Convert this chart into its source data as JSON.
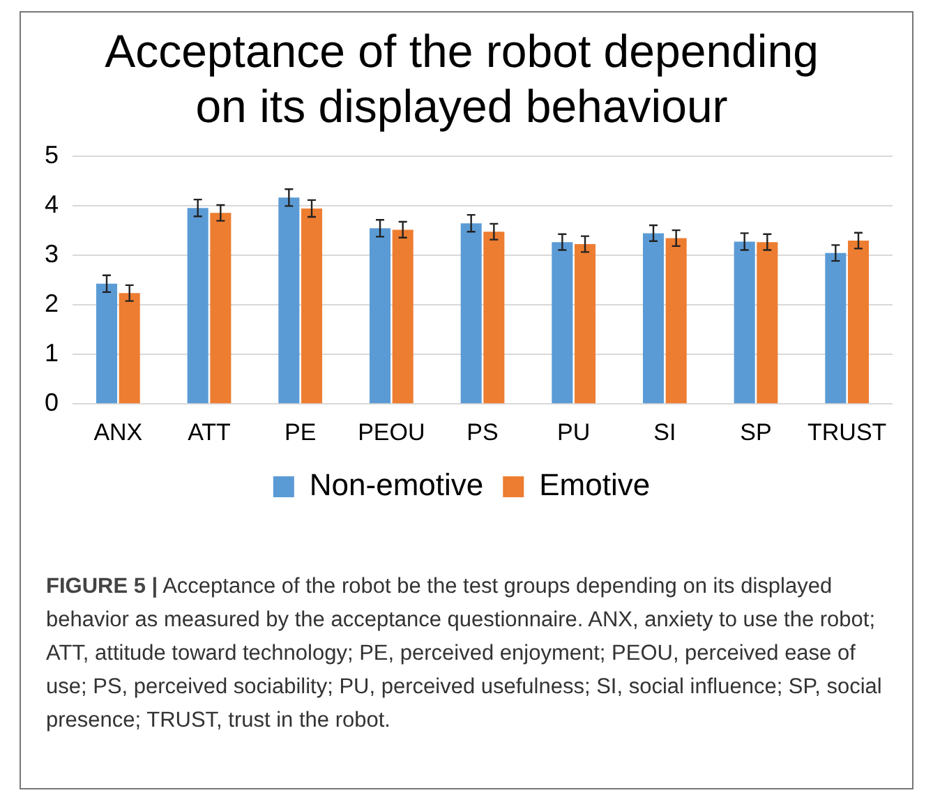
{
  "chart_data": {
    "type": "bar",
    "title": [
      "Acceptance of the robot depending",
      "on its displayed behaviour"
    ],
    "categories": [
      "ANX",
      "ATT",
      "PE",
      "PEOU",
      "PS",
      "PU",
      "SI",
      "SP",
      "TRUST"
    ],
    "series": [
      {
        "name": "Non-emotive",
        "color": "#5b9bd5",
        "values": [
          2.43,
          3.96,
          4.17,
          3.55,
          3.65,
          3.27,
          3.45,
          3.28,
          3.05
        ],
        "errors": [
          0.17,
          0.17,
          0.17,
          0.17,
          0.17,
          0.16,
          0.16,
          0.17,
          0.16
        ]
      },
      {
        "name": "Emotive",
        "color": "#ed7d31",
        "values": [
          2.24,
          3.86,
          3.95,
          3.52,
          3.48,
          3.23,
          3.35,
          3.27,
          3.3
        ],
        "errors": [
          0.16,
          0.16,
          0.17,
          0.16,
          0.16,
          0.16,
          0.16,
          0.16,
          0.16
        ]
      }
    ],
    "ylim": [
      0,
      5
    ],
    "yticks": [
      0,
      1,
      2,
      3,
      4,
      5
    ],
    "grid": "y",
    "legend": "bottom",
    "annotations": [
      "FIGURE 5 | Acceptance of the robot be the test groups depending on its displayed behavior as measured by the acceptance questionnaire. ANX, anxiety to use the robot; ATT, attitude toward technology; PE, perceived enjoyment; PEOU, perceived ease of use; PS, perceived sociability; PU, perceived usefulness; SI, social influence; SP, social presence; TRUST, trust in the robot."
    ]
  }
}
